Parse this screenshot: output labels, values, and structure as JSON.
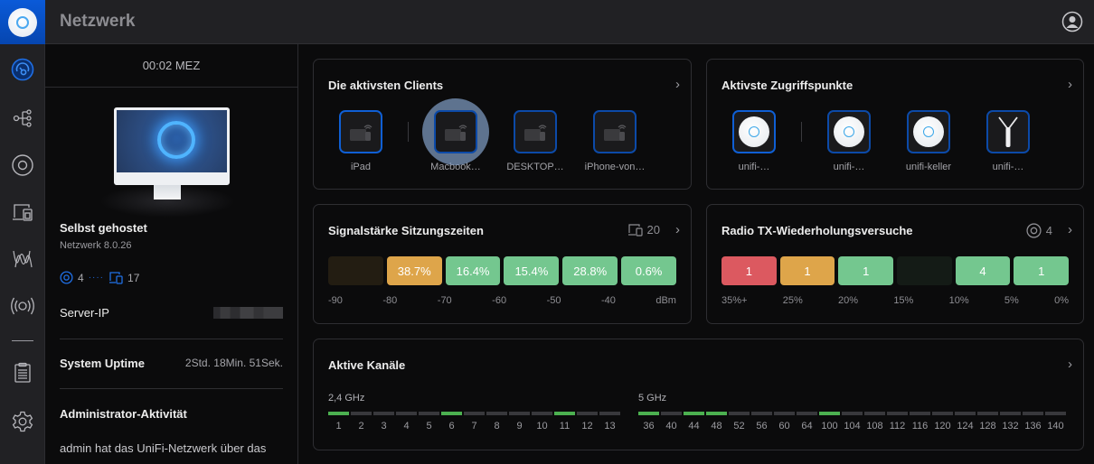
{
  "app": {
    "title": "Netzwerk"
  },
  "rail": {
    "items": [
      {
        "name": "dashboard",
        "icon": "dashboard-gauge-icon",
        "active": true
      },
      {
        "name": "topology",
        "icon": "topology-icon"
      },
      {
        "name": "unifi-devices",
        "icon": "unifi-device-icon"
      },
      {
        "name": "client-devices",
        "icon": "client-devices-icon"
      },
      {
        "name": "insights",
        "icon": "waves-icon"
      },
      {
        "name": "radios",
        "icon": "broadcast-icon"
      },
      {
        "name": "system-log",
        "icon": "clipboard-list-icon"
      },
      {
        "name": "settings",
        "icon": "gear-icon"
      }
    ]
  },
  "panel": {
    "time": "00:02 MEZ",
    "controller_name": "Selbst gehostet",
    "version": "Netzwerk 8.0.26",
    "ap_count": "4",
    "client_count": "17",
    "server_ip_label": "Server-IP",
    "uptime_label": "System Uptime",
    "uptime_value": "2Std. 18Min. 51Sek.",
    "admin_activity_title": "Administrator-Aktivität",
    "admin_activity_text": "admin hat das UniFi-Netzwerk über das"
  },
  "clients_card": {
    "title": "Die aktivsten Clients",
    "items": [
      {
        "label": "iPad"
      },
      {
        "label": "Macbook…"
      },
      {
        "label": "DESKTOP…"
      },
      {
        "label": "iPhone-von…"
      }
    ]
  },
  "aps_card": {
    "title": "Aktivste Zugriffspunkte",
    "items": [
      {
        "label": "unifi-…"
      },
      {
        "label": "unifi-…"
      },
      {
        "label": "unifi-keller"
      },
      {
        "label": "unifi-…"
      }
    ]
  },
  "signal_card": {
    "title": "Signalstärke Sitzungszeiten",
    "client_count": "20",
    "bars": [
      {
        "value": "",
        "color": "#231d12"
      },
      {
        "value": "38.7%",
        "color": "#dea54a"
      },
      {
        "value": "16.4%",
        "color": "#74c78f"
      },
      {
        "value": "15.4%",
        "color": "#74c78f"
      },
      {
        "value": "28.8%",
        "color": "#74c78f"
      },
      {
        "value": "0.6%",
        "color": "#74c78f"
      }
    ],
    "axis": [
      "-90",
      "-80",
      "-70",
      "-60",
      "-50",
      "-40",
      "dBm"
    ]
  },
  "retry_card": {
    "title": "Radio TX-Wiederholungsversuche",
    "ap_count": "4",
    "bars": [
      {
        "value": "1",
        "color": "#dc5960"
      },
      {
        "value": "1",
        "color": "#dea54a"
      },
      {
        "value": "1",
        "color": "#74c78f"
      },
      {
        "value": "",
        "color": "#141b16"
      },
      {
        "value": "4",
        "color": "#74c78f"
      },
      {
        "value": "1",
        "color": "#74c78f"
      }
    ],
    "axis": [
      "35%+",
      "25%",
      "20%",
      "15%",
      "10%",
      "5%",
      "0%"
    ]
  },
  "channels_card": {
    "title": "Aktive Kanäle",
    "band_24": {
      "label": "2,4 GHz",
      "channels": [
        "1",
        "2",
        "3",
        "4",
        "5",
        "6",
        "7",
        "8",
        "9",
        "10",
        "11",
        "12",
        "13"
      ],
      "active": [
        "1",
        "6",
        "11"
      ]
    },
    "band_5": {
      "label": "5 GHz",
      "channels": [
        "36",
        "40",
        "44",
        "48",
        "52",
        "56",
        "60",
        "64",
        "100",
        "104",
        "108",
        "112",
        "116",
        "120",
        "124",
        "128",
        "132",
        "136",
        "140"
      ],
      "active": [
        "36",
        "44",
        "48",
        "100"
      ]
    }
  }
}
